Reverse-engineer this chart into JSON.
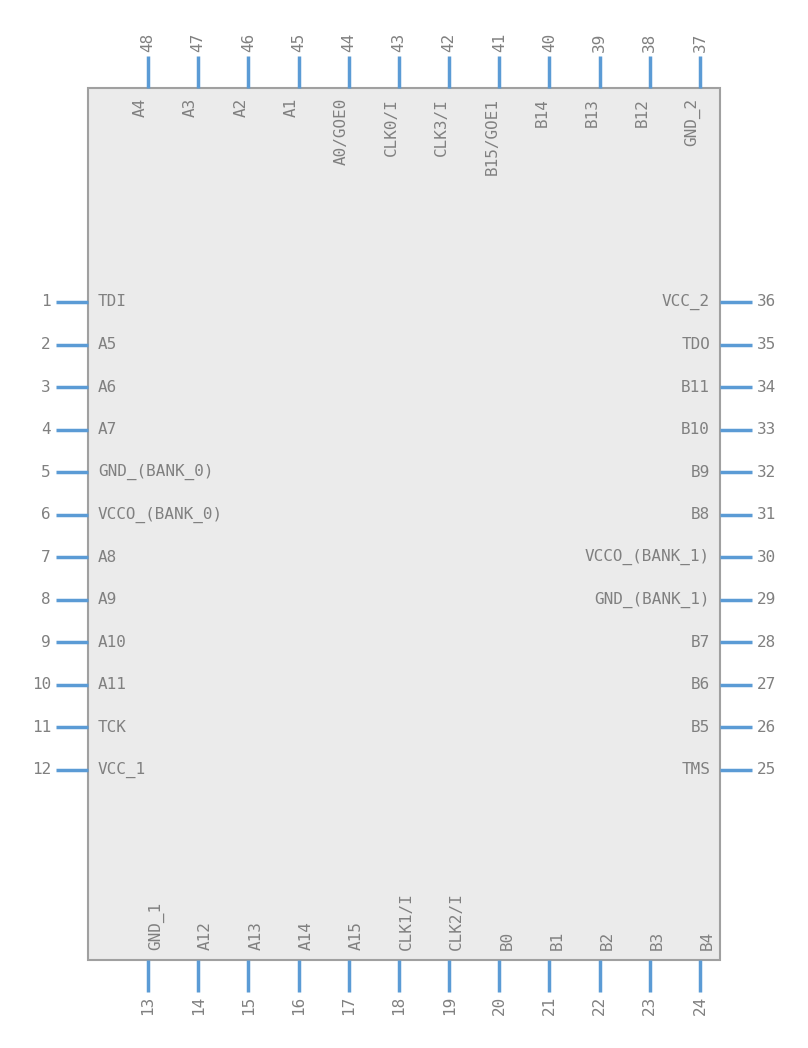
{
  "body_color": "#ebebeb",
  "border_color": "#a0a0a0",
  "pin_color": "#5b9bd5",
  "text_color": "#808080",
  "background_color": "#ffffff",
  "left_pins": [
    {
      "num": 1,
      "name": "TDI"
    },
    {
      "num": 2,
      "name": "A5"
    },
    {
      "num": 3,
      "name": "A6"
    },
    {
      "num": 4,
      "name": "A7"
    },
    {
      "num": 5,
      "name": "GND_(BANK_0)"
    },
    {
      "num": 6,
      "name": "VCCO_(BANK_0)"
    },
    {
      "num": 7,
      "name": "A8"
    },
    {
      "num": 8,
      "name": "A9"
    },
    {
      "num": 9,
      "name": "A10"
    },
    {
      "num": 10,
      "name": "A11"
    },
    {
      "num": 11,
      "name": "TCK"
    },
    {
      "num": 12,
      "name": "VCC_1"
    }
  ],
  "right_pins": [
    {
      "num": 36,
      "name": "VCC_2"
    },
    {
      "num": 35,
      "name": "TDO"
    },
    {
      "num": 34,
      "name": "B11"
    },
    {
      "num": 33,
      "name": "B10"
    },
    {
      "num": 32,
      "name": "B9"
    },
    {
      "num": 31,
      "name": "B8"
    },
    {
      "num": 30,
      "name": "VCCO_(BANK_1)"
    },
    {
      "num": 29,
      "name": "GND_(BANK_1)"
    },
    {
      "num": 28,
      "name": "B7"
    },
    {
      "num": 27,
      "name": "B6"
    },
    {
      "num": 26,
      "name": "B5"
    },
    {
      "num": 25,
      "name": "TMS"
    }
  ],
  "top_pins": [
    {
      "num": 48,
      "name": "A4"
    },
    {
      "num": 47,
      "name": "A3"
    },
    {
      "num": 46,
      "name": "A2"
    },
    {
      "num": 45,
      "name": "A1"
    },
    {
      "num": 44,
      "name": "A0/GOE0"
    },
    {
      "num": 43,
      "name": "CLK0/I"
    },
    {
      "num": 42,
      "name": "CLK3/I"
    },
    {
      "num": 41,
      "name": "B15/GOE1"
    },
    {
      "num": 40,
      "name": "B14"
    },
    {
      "num": 39,
      "name": "B13"
    },
    {
      "num": 38,
      "name": "B12"
    },
    {
      "num": 37,
      "name": "GND_2"
    }
  ],
  "bottom_pins": [
    {
      "num": 13,
      "name": "GND_1"
    },
    {
      "num": 14,
      "name": "A12"
    },
    {
      "num": 15,
      "name": "A13"
    },
    {
      "num": 16,
      "name": "A14"
    },
    {
      "num": 17,
      "name": "A15"
    },
    {
      "num": 18,
      "name": "CLK1/I"
    },
    {
      "num": 19,
      "name": "CLK2/I"
    },
    {
      "num": 20,
      "name": "B0"
    },
    {
      "num": 21,
      "name": "B1"
    },
    {
      "num": 22,
      "name": "B2"
    },
    {
      "num": 23,
      "name": "B3"
    },
    {
      "num": 24,
      "name": "B4"
    }
  ]
}
